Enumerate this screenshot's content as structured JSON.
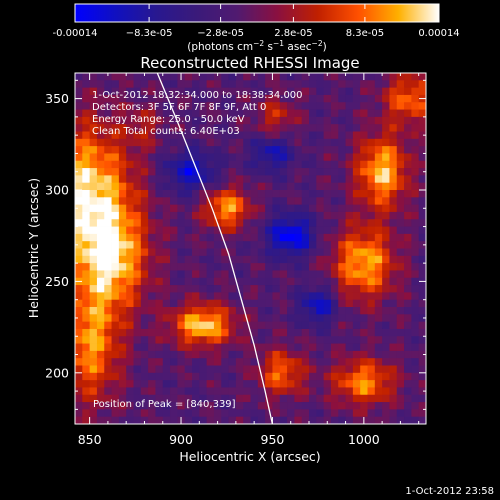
{
  "chart_data": {
    "type": "heatmap",
    "title": "Reconstructed RHESSI Image",
    "xlabel": "Heliocentric X (arcsec)",
    "ylabel": "Heliocentric Y (arcsec)",
    "xlim": [
      842,
      1034
    ],
    "ylim": [
      172,
      364
    ],
    "xticks": [
      850,
      900,
      950,
      1000
    ],
    "yticks": [
      200,
      250,
      300,
      350
    ],
    "xtick_labels": [
      "850",
      "900",
      "950",
      "1000"
    ],
    "ytick_labels": [
      "200",
      "250",
      "300",
      "350"
    ],
    "colorbar": {
      "min": -0.00014,
      "max": 0.00014,
      "ticks": [
        -0.00014,
        -8.3e-05,
        -2.8e-05,
        2.8e-05,
        8.3e-05,
        0.00014
      ],
      "tick_labels": [
        "-0.00014",
        "−8.3e-05",
        "−2.8e-05",
        "2.8e-05",
        "8.3e-05",
        "0.00014"
      ],
      "unit_text": "(photons cm",
      "unit_exp1": "−2",
      "unit_mid": " s",
      "unit_exp2": "−1",
      "unit_mid2": " asec",
      "unit_exp3": "−2",
      "unit_close": ")",
      "colors": [
        "#0000ff",
        "#1010c0",
        "#281890",
        "#3a1a7a",
        "#501a70",
        "#8a1040",
        "#c02000",
        "#ff5000",
        "#ffb000",
        "#ffffff"
      ]
    },
    "annotations": [
      "1-Oct-2012 18:32:34.000 to 18:38:34.000",
      "Detectors: 3F 5F 6F 7F 8F 9F, Att 0",
      "Energy Range: 25.0 - 50.0 keV",
      "Clean     Total counts: 6.40E+03"
    ],
    "peak_label": "Position of Peak = [840,339]",
    "limb_curve": [
      [
        887,
        364
      ],
      [
        897,
        340
      ],
      [
        907,
        315
      ],
      [
        917,
        290
      ],
      [
        926,
        265
      ],
      [
        933,
        240
      ],
      [
        940,
        215
      ],
      [
        946,
        190
      ],
      [
        950,
        172
      ]
    ],
    "sources": [
      {
        "x": 848,
        "y": 300,
        "amp": 1.0,
        "sx": 18,
        "sy": 26
      },
      {
        "x": 862,
        "y": 262,
        "amp": 0.9,
        "sx": 14,
        "sy": 20
      },
      {
        "x": 850,
        "y": 215,
        "amp": 0.8,
        "sx": 12,
        "sy": 22
      },
      {
        "x": 912,
        "y": 226,
        "amp": 1.0,
        "sx": 12,
        "sy": 8
      },
      {
        "x": 925,
        "y": 290,
        "amp": 0.85,
        "sx": 9,
        "sy": 8
      },
      {
        "x": 1010,
        "y": 310,
        "amp": 0.95,
        "sx": 10,
        "sy": 14
      },
      {
        "x": 1000,
        "y": 260,
        "amp": 0.9,
        "sx": 12,
        "sy": 14
      },
      {
        "x": 1025,
        "y": 350,
        "amp": 0.7,
        "sx": 10,
        "sy": 10
      },
      {
        "x": 955,
        "y": 200,
        "amp": 0.7,
        "sx": 9,
        "sy": 9
      },
      {
        "x": 1000,
        "y": 195,
        "amp": 0.8,
        "sx": 12,
        "sy": 9
      },
      {
        "x": 952,
        "y": 340,
        "amp": 0.45,
        "sx": 8,
        "sy": 8
      },
      {
        "x": 880,
        "y": 335,
        "amp": 0.3,
        "sx": 7,
        "sy": 8
      },
      {
        "x": 960,
        "y": 275,
        "amp": -0.9,
        "sx": 9,
        "sy": 8
      },
      {
        "x": 905,
        "y": 310,
        "amp": -0.7,
        "sx": 10,
        "sy": 8
      },
      {
        "x": 950,
        "y": 320,
        "amp": -0.6,
        "sx": 8,
        "sy": 7
      },
      {
        "x": 975,
        "y": 237,
        "amp": -0.7,
        "sx": 7,
        "sy": 7
      }
    ]
  },
  "footer": {
    "timestamp": "1-Oct-2012 23:58"
  }
}
